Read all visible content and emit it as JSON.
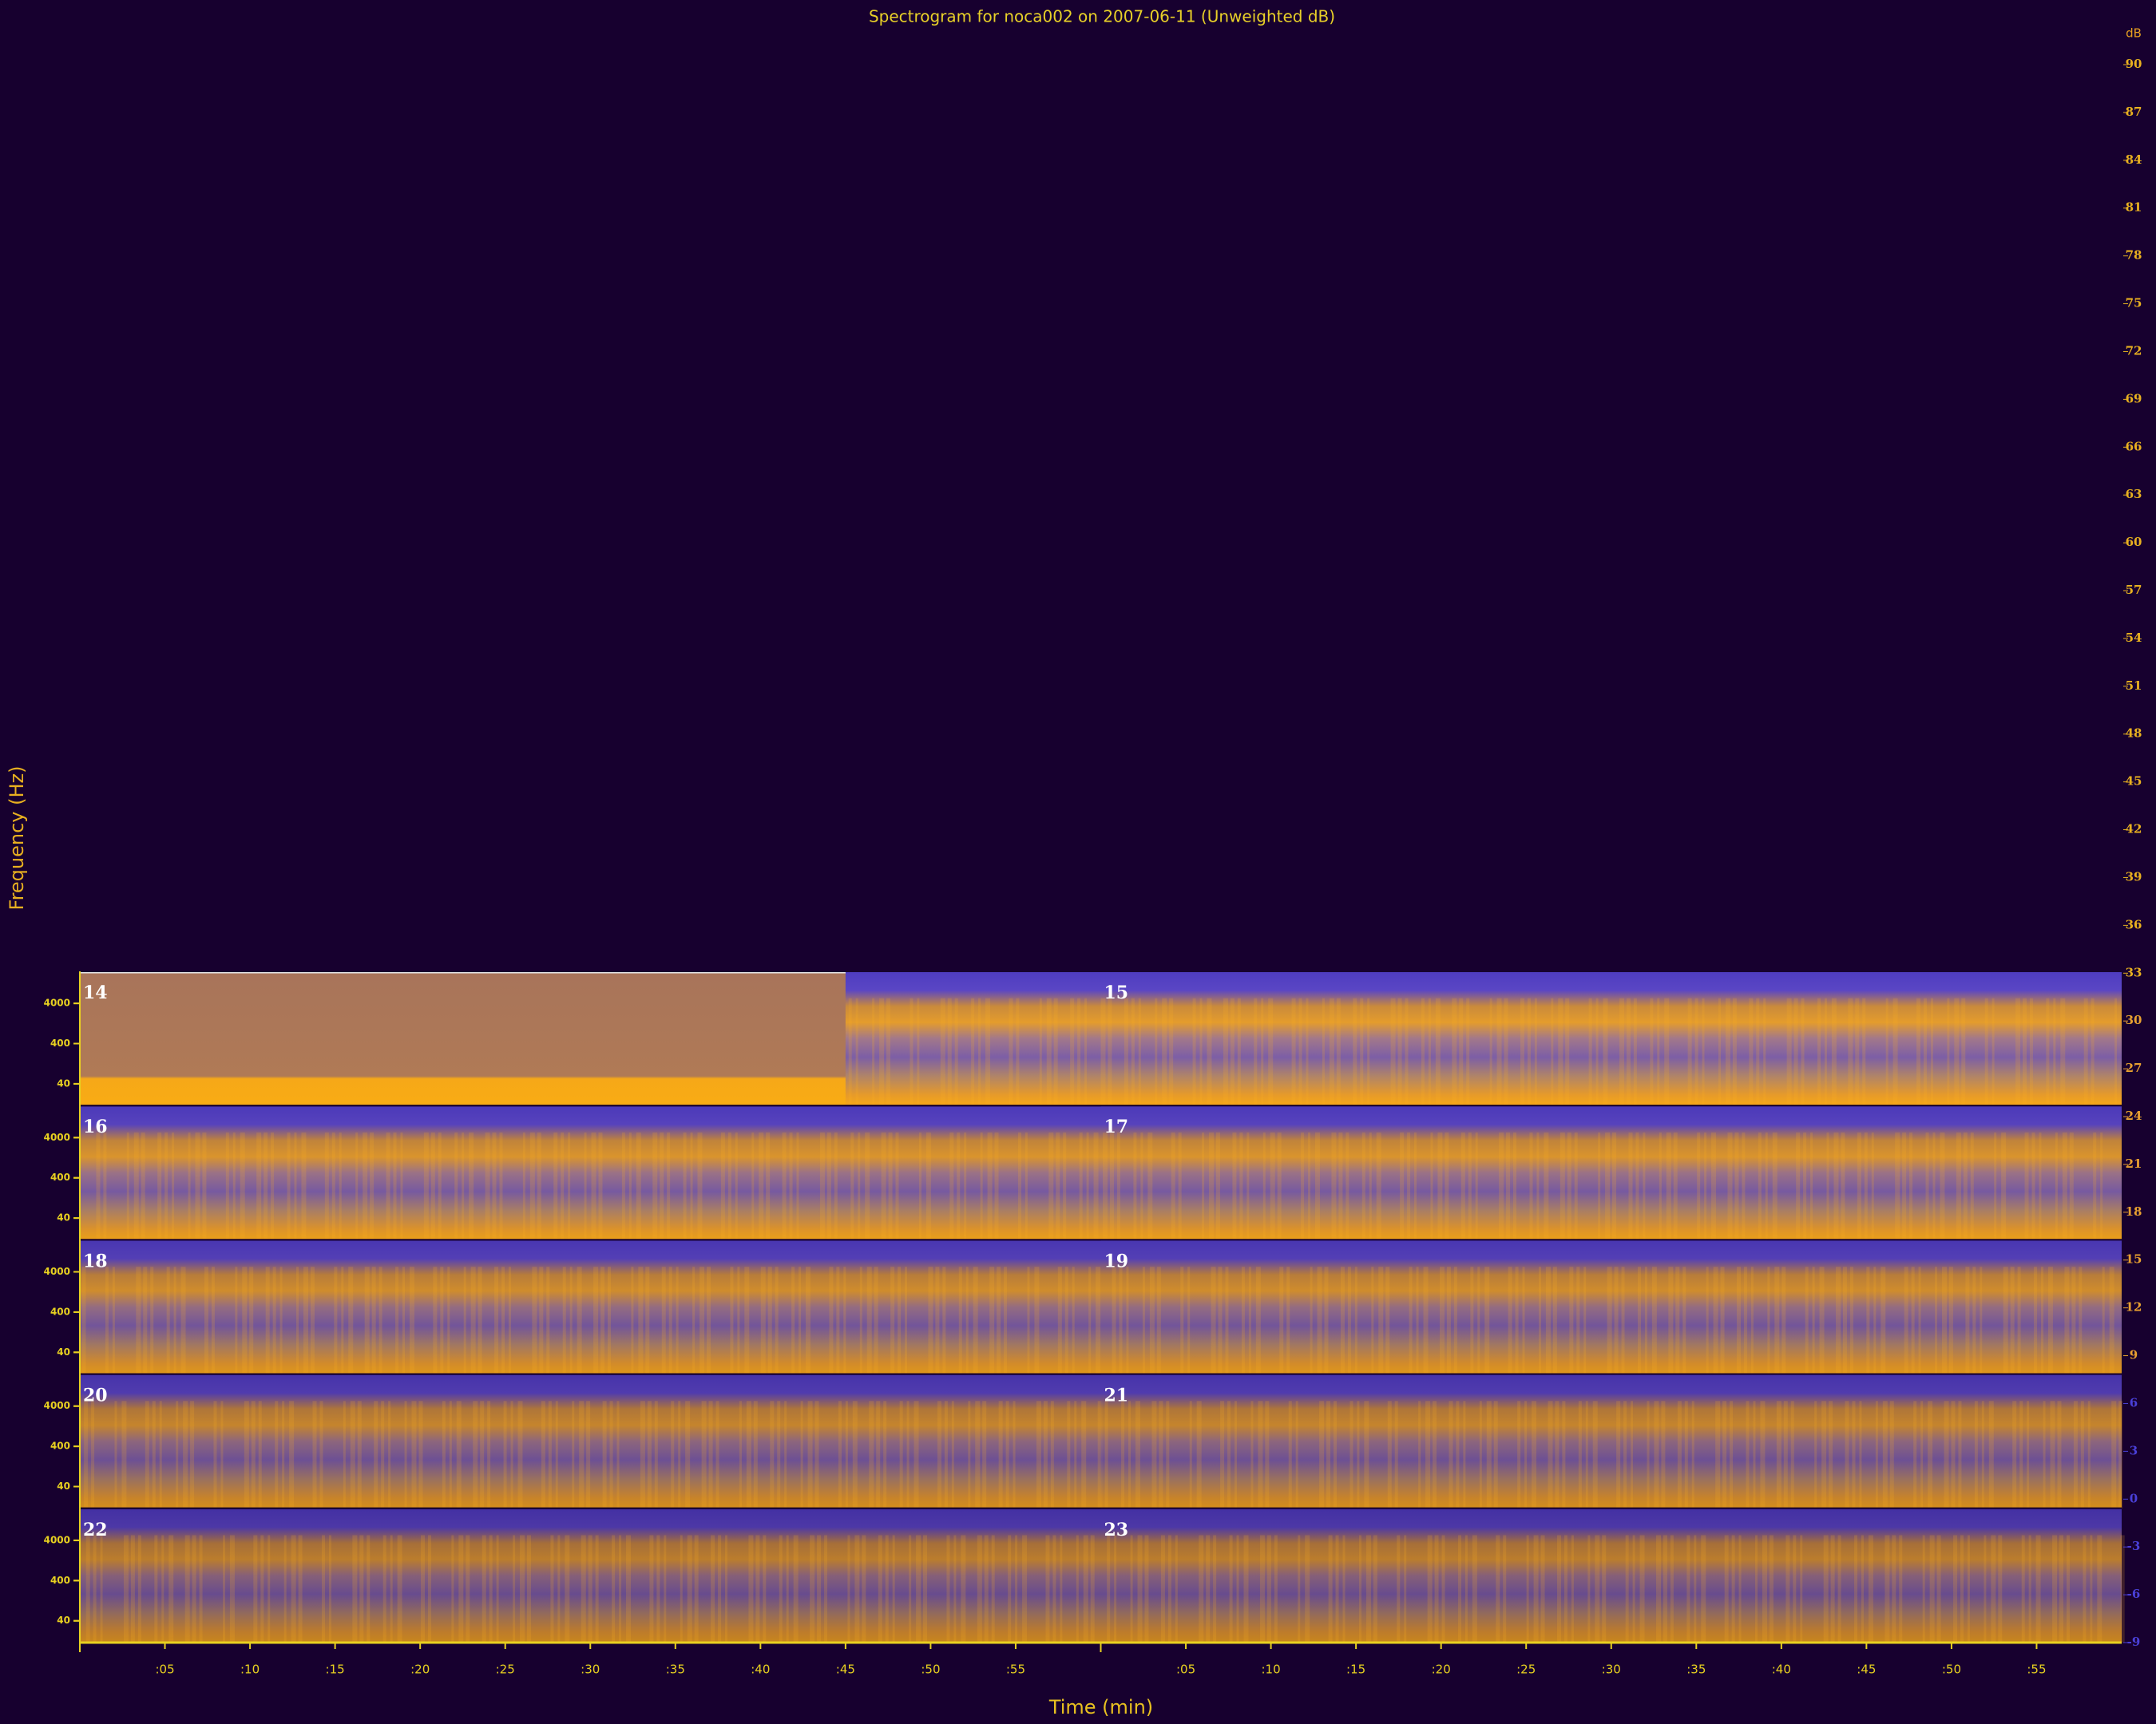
{
  "chart_data": {
    "type": "spectrogram",
    "title": "Spectrogram for noca002 on 2007-06-11 (Unweighted dB)",
    "x_label": "Time (min)",
    "y_label": "Frequency (Hz)",
    "colorbar_label": "dB",
    "hours": [
      14,
      15,
      16,
      17,
      18,
      19,
      20,
      21,
      22,
      23
    ],
    "xlim": [
      0,
      60
    ],
    "xticks": [
      {
        "value": 5,
        "label": ":05"
      },
      {
        "value": 10,
        "label": ":10"
      },
      {
        "value": 15,
        "label": ":15"
      },
      {
        "value": 20,
        "label": ":20"
      },
      {
        "value": 25,
        "label": ":25"
      },
      {
        "value": 30,
        "label": ":30"
      },
      {
        "value": 35,
        "label": ":35"
      },
      {
        "value": 40,
        "label": ":40"
      },
      {
        "value": 45,
        "label": ":45"
      },
      {
        "value": 50,
        "label": ":50"
      },
      {
        "value": 55,
        "label": ":55"
      }
    ],
    "ylim": [
      11.5,
      25000
    ],
    "ylog": true,
    "yticks": [
      40,
      400,
      4000
    ],
    "clim": [
      -9,
      90
    ],
    "cticks": [
      90,
      87,
      84,
      81,
      78,
      75,
      72,
      69,
      66,
      63,
      60,
      57,
      54,
      51,
      48,
      45,
      42,
      39,
      36,
      33,
      30,
      27,
      24,
      21,
      18,
      15,
      12,
      9,
      6,
      3,
      0,
      -3,
      -6,
      -9
    ]
  }
}
